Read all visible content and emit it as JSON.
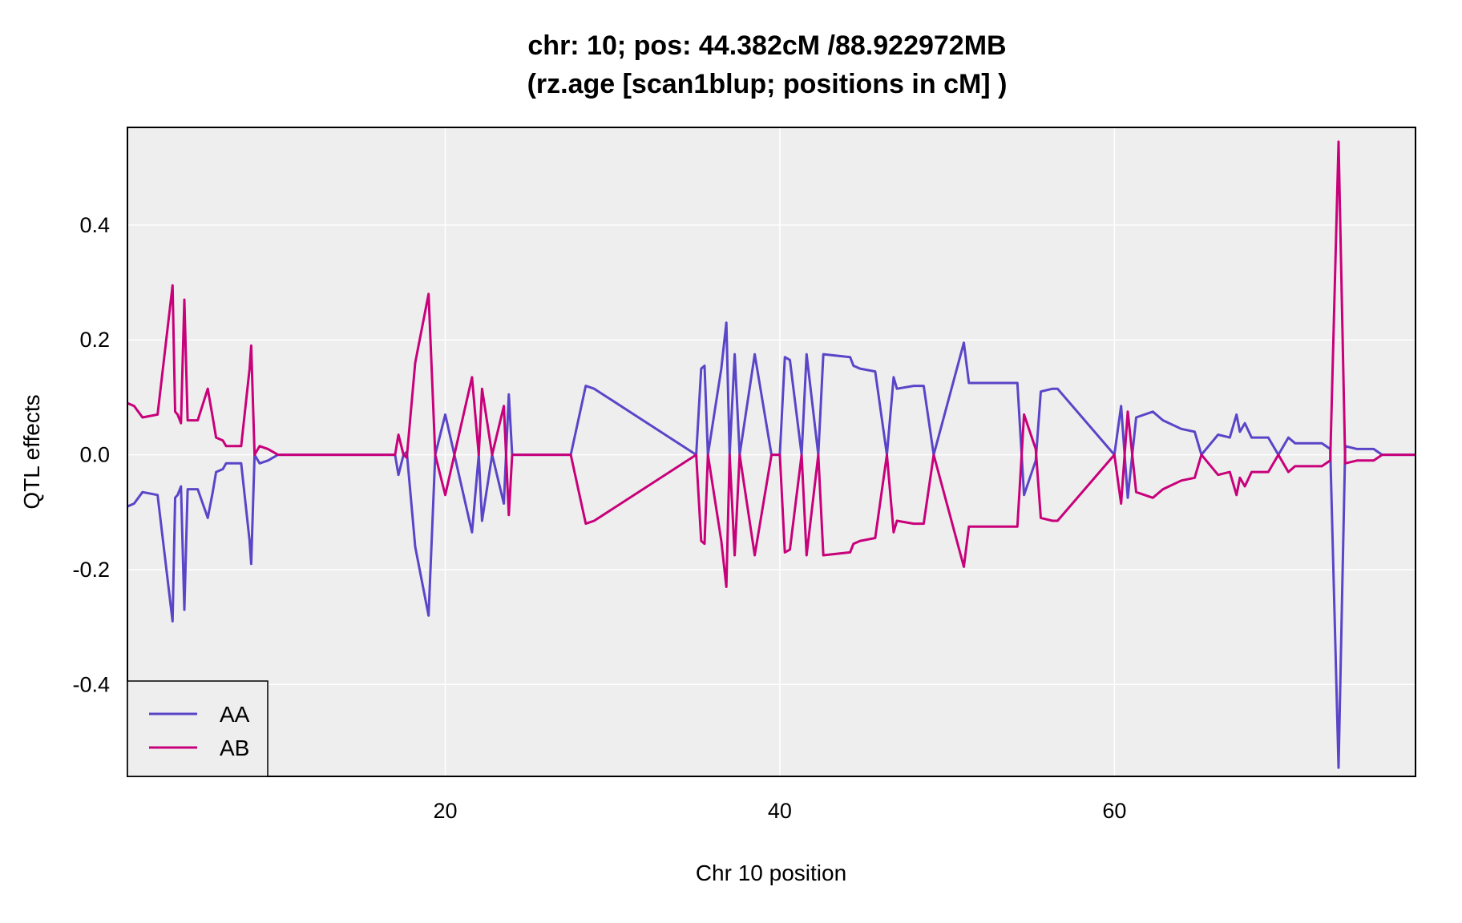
{
  "chart_data": {
    "type": "line",
    "title_lines": [
      "chr: 10; pos: 44.382cM /88.922972MB",
      "(rz.age [scan1blup; positions in cM] )"
    ],
    "xlabel": "Chr 10 position",
    "ylabel": "QTL effects",
    "xlim": [
      1,
      78
    ],
    "ylim": [
      -0.56,
      0.57
    ],
    "xticks": [
      20,
      40,
      60
    ],
    "yticks": [
      -0.4,
      -0.2,
      0.0,
      0.2,
      0.4
    ],
    "ytick_labels": [
      "-0.4",
      "-0.2",
      "0.0",
      "0.2",
      "0.4"
    ],
    "grid": true,
    "background": "#eeeeee",
    "legend_position": "bottom-left",
    "series": [
      {
        "name": "AA",
        "color": "#5a45c8",
        "x": [
          1.0,
          1.4,
          1.9,
          2.8,
          3.7,
          3.85,
          4.0,
          4.2,
          4.4,
          4.6,
          5.2,
          5.8,
          6.1,
          6.3,
          6.7,
          6.9,
          7.8,
          8.3,
          8.4,
          8.6,
          8.9,
          9.4,
          10.0,
          17.0,
          17.2,
          17.5,
          17.7,
          18.2,
          19.0,
          19.4,
          20.0,
          21.6,
          22.0,
          22.2,
          22.8,
          23.5,
          23.8,
          24.0,
          27.5,
          28.4,
          28.9,
          35.0,
          35.3,
          35.5,
          35.7,
          36.5,
          36.8,
          37.0,
          37.3,
          37.6,
          38.5,
          39.5,
          40.0,
          40.3,
          40.6,
          41.3,
          41.6,
          42.3,
          42.6,
          44.2,
          44.4,
          44.8,
          45.7,
          46.4,
          46.8,
          47.0,
          48.0,
          48.6,
          49.2,
          51.0,
          51.3,
          52.1,
          54.2,
          54.6,
          55.3,
          55.6,
          56.3,
          56.6,
          60.0,
          60.4,
          60.8,
          61.3,
          62.3,
          62.9,
          64.0,
          64.8,
          65.2,
          66.2,
          66.9,
          67.3,
          67.5,
          67.8,
          68.2,
          69.2,
          69.8,
          70.4,
          70.8,
          71.3,
          72.4,
          72.9,
          73.4,
          73.8,
          74.5,
          75.5,
          76.0,
          78.0
        ],
        "y": [
          -0.09,
          -0.085,
          -0.065,
          -0.07,
          -0.29,
          -0.075,
          -0.07,
          -0.055,
          -0.27,
          -0.06,
          -0.06,
          -0.11,
          -0.065,
          -0.03,
          -0.025,
          -0.015,
          -0.015,
          -0.15,
          -0.19,
          0.0,
          -0.015,
          -0.01,
          0.0,
          0.0,
          -0.035,
          0.0,
          0.005,
          -0.16,
          -0.28,
          0.0,
          0.07,
          -0.135,
          0.0,
          -0.115,
          0.0,
          -0.085,
          0.105,
          0.0,
          0.0,
          0.12,
          0.115,
          0.0,
          0.15,
          0.155,
          0.0,
          0.15,
          0.23,
          0.0,
          0.175,
          0.0,
          0.175,
          0.0,
          0.0,
          0.17,
          0.165,
          0.0,
          0.175,
          0.0,
          0.175,
          0.17,
          0.155,
          0.15,
          0.145,
          0.0,
          0.135,
          0.115,
          0.12,
          0.12,
          0.0,
          0.195,
          0.125,
          0.125,
          0.125,
          -0.07,
          -0.01,
          0.11,
          0.115,
          0.115,
          0.0,
          0.085,
          -0.075,
          0.065,
          0.075,
          0.06,
          0.045,
          0.04,
          0.0,
          0.035,
          0.03,
          0.07,
          0.04,
          0.055,
          0.03,
          0.03,
          0.0,
          0.03,
          0.02,
          0.02,
          0.02,
          0.01,
          -0.545,
          0.015,
          0.01,
          0.01,
          0.0,
          0.0
        ]
      },
      {
        "name": "AB",
        "color": "#c8007a",
        "x": [
          1.0,
          1.4,
          1.9,
          2.8,
          3.7,
          3.85,
          4.0,
          4.2,
          4.4,
          4.6,
          5.2,
          5.8,
          6.1,
          6.3,
          6.7,
          6.9,
          7.8,
          8.3,
          8.4,
          8.6,
          8.9,
          9.4,
          10.0,
          17.0,
          17.2,
          17.5,
          17.7,
          18.2,
          19.0,
          19.4,
          20.0,
          21.6,
          22.0,
          22.2,
          22.8,
          23.5,
          23.8,
          24.0,
          27.5,
          28.4,
          28.9,
          35.0,
          35.3,
          35.5,
          35.7,
          36.5,
          36.8,
          37.0,
          37.3,
          37.6,
          38.5,
          39.5,
          40.0,
          40.3,
          40.6,
          41.3,
          41.6,
          42.3,
          42.6,
          44.2,
          44.4,
          44.8,
          45.7,
          46.4,
          46.8,
          47.0,
          48.0,
          48.6,
          49.2,
          51.0,
          51.3,
          52.1,
          54.2,
          54.6,
          55.3,
          55.6,
          56.3,
          56.6,
          60.0,
          60.4,
          60.8,
          61.3,
          62.3,
          62.9,
          64.0,
          64.8,
          65.2,
          66.2,
          66.9,
          67.3,
          67.5,
          67.8,
          68.2,
          69.2,
          69.8,
          70.4,
          70.8,
          71.3,
          72.4,
          72.9,
          73.4,
          73.8,
          74.5,
          75.5,
          76.0,
          78.0
        ],
        "y": [
          0.09,
          0.085,
          0.065,
          0.07,
          0.295,
          0.075,
          0.07,
          0.055,
          0.27,
          0.06,
          0.06,
          0.115,
          0.065,
          0.03,
          0.025,
          0.015,
          0.015,
          0.15,
          0.19,
          0.0,
          0.015,
          0.01,
          0.0,
          0.0,
          0.035,
          0.0,
          -0.005,
          0.16,
          0.28,
          0.0,
          -0.07,
          0.135,
          0.0,
          0.115,
          0.0,
          0.085,
          -0.105,
          0.0,
          0.0,
          -0.12,
          -0.115,
          0.0,
          -0.15,
          -0.155,
          0.0,
          -0.15,
          -0.23,
          0.0,
          -0.175,
          0.0,
          -0.175,
          0.0,
          0.0,
          -0.17,
          -0.165,
          0.0,
          -0.175,
          0.0,
          -0.175,
          -0.17,
          -0.155,
          -0.15,
          -0.145,
          0.0,
          -0.135,
          -0.115,
          -0.12,
          -0.12,
          0.0,
          -0.195,
          -0.125,
          -0.125,
          -0.125,
          0.07,
          0.01,
          -0.11,
          -0.115,
          -0.115,
          0.0,
          -0.085,
          0.075,
          -0.065,
          -0.075,
          -0.06,
          -0.045,
          -0.04,
          0.0,
          -0.035,
          -0.03,
          -0.07,
          -0.04,
          -0.055,
          -0.03,
          -0.03,
          0.0,
          -0.03,
          -0.02,
          -0.02,
          -0.02,
          -0.01,
          0.545,
          -0.015,
          -0.01,
          -0.01,
          0.0,
          0.0
        ]
      }
    ]
  }
}
